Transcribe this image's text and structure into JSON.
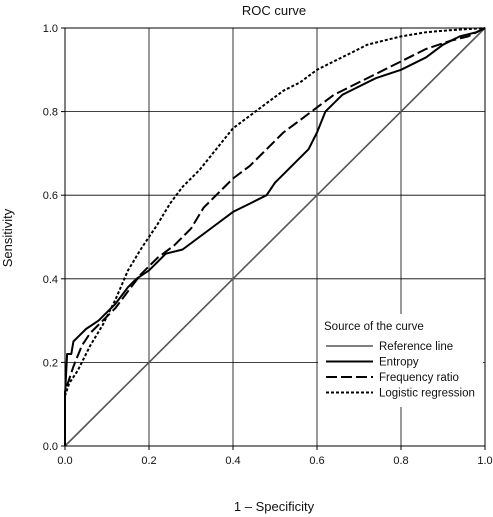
{
  "chart_data": {
    "type": "line",
    "title": "ROC curve",
    "xlabel": "1 – Specificity",
    "ylabel": "Sensitivity",
    "xlim": [
      0,
      1
    ],
    "ylim": [
      0,
      1
    ],
    "x_ticks": [
      "0.0",
      "0.2",
      "0.4",
      "0.6",
      "0.8",
      "1.0"
    ],
    "y_ticks": [
      "0.0",
      "0.2",
      "0.4",
      "0.6",
      "0.8",
      "1.0"
    ],
    "grid": true,
    "legend": {
      "title": "Source of the curve",
      "placement": "bottom-right"
    },
    "series": [
      {
        "name": "Reference line",
        "style": "solid-thin",
        "color": "#555555",
        "points": [
          [
            0,
            0
          ],
          [
            1,
            1
          ]
        ]
      },
      {
        "name": "Entropy",
        "style": "solid",
        "color": "#000000",
        "points": [
          [
            0,
            0
          ],
          [
            0,
            0.12
          ],
          [
            0.005,
            0.22
          ],
          [
            0.015,
            0.22
          ],
          [
            0.02,
            0.25
          ],
          [
            0.03,
            0.26
          ],
          [
            0.05,
            0.28
          ],
          [
            0.08,
            0.3
          ],
          [
            0.1,
            0.32
          ],
          [
            0.12,
            0.34
          ],
          [
            0.15,
            0.38
          ],
          [
            0.17,
            0.4
          ],
          [
            0.2,
            0.42
          ],
          [
            0.24,
            0.46
          ],
          [
            0.28,
            0.47
          ],
          [
            0.32,
            0.5
          ],
          [
            0.36,
            0.53
          ],
          [
            0.4,
            0.56
          ],
          [
            0.44,
            0.58
          ],
          [
            0.48,
            0.6
          ],
          [
            0.5,
            0.63
          ],
          [
            0.54,
            0.67
          ],
          [
            0.58,
            0.71
          ],
          [
            0.6,
            0.75
          ],
          [
            0.62,
            0.8
          ],
          [
            0.66,
            0.84
          ],
          [
            0.7,
            0.86
          ],
          [
            0.74,
            0.88
          ],
          [
            0.8,
            0.9
          ],
          [
            0.86,
            0.93
          ],
          [
            0.9,
            0.96
          ],
          [
            0.94,
            0.98
          ],
          [
            0.98,
            0.99
          ],
          [
            1,
            1
          ]
        ]
      },
      {
        "name": "Frequency ratio",
        "style": "long-dash",
        "color": "#000000",
        "points": [
          [
            0,
            0
          ],
          [
            0,
            0.13
          ],
          [
            0.01,
            0.16
          ],
          [
            0.02,
            0.19
          ],
          [
            0.04,
            0.24
          ],
          [
            0.06,
            0.27
          ],
          [
            0.09,
            0.3
          ],
          [
            0.12,
            0.33
          ],
          [
            0.15,
            0.37
          ],
          [
            0.18,
            0.41
          ],
          [
            0.22,
            0.45
          ],
          [
            0.26,
            0.48
          ],
          [
            0.3,
            0.52
          ],
          [
            0.33,
            0.57
          ],
          [
            0.36,
            0.6
          ],
          [
            0.4,
            0.64
          ],
          [
            0.44,
            0.67
          ],
          [
            0.48,
            0.71
          ],
          [
            0.52,
            0.75
          ],
          [
            0.56,
            0.78
          ],
          [
            0.6,
            0.81
          ],
          [
            0.64,
            0.84
          ],
          [
            0.68,
            0.86
          ],
          [
            0.74,
            0.89
          ],
          [
            0.8,
            0.92
          ],
          [
            0.86,
            0.95
          ],
          [
            0.92,
            0.97
          ],
          [
            0.96,
            0.98
          ],
          [
            1,
            1
          ]
        ]
      },
      {
        "name": "Logistic regression",
        "style": "short-dash",
        "color": "#000000",
        "points": [
          [
            0,
            0
          ],
          [
            0,
            0.12
          ],
          [
            0.01,
            0.15
          ],
          [
            0.03,
            0.18
          ],
          [
            0.06,
            0.24
          ],
          [
            0.09,
            0.29
          ],
          [
            0.12,
            0.35
          ],
          [
            0.15,
            0.42
          ],
          [
            0.18,
            0.47
          ],
          [
            0.22,
            0.53
          ],
          [
            0.25,
            0.58
          ],
          [
            0.28,
            0.62
          ],
          [
            0.32,
            0.66
          ],
          [
            0.36,
            0.71
          ],
          [
            0.4,
            0.76
          ],
          [
            0.44,
            0.79
          ],
          [
            0.48,
            0.82
          ],
          [
            0.52,
            0.85
          ],
          [
            0.56,
            0.87
          ],
          [
            0.6,
            0.9
          ],
          [
            0.64,
            0.92
          ],
          [
            0.68,
            0.94
          ],
          [
            0.72,
            0.96
          ],
          [
            0.76,
            0.97
          ],
          [
            0.8,
            0.98
          ],
          [
            0.86,
            0.99
          ],
          [
            0.92,
            0.995
          ],
          [
            1,
            1
          ]
        ]
      }
    ]
  }
}
